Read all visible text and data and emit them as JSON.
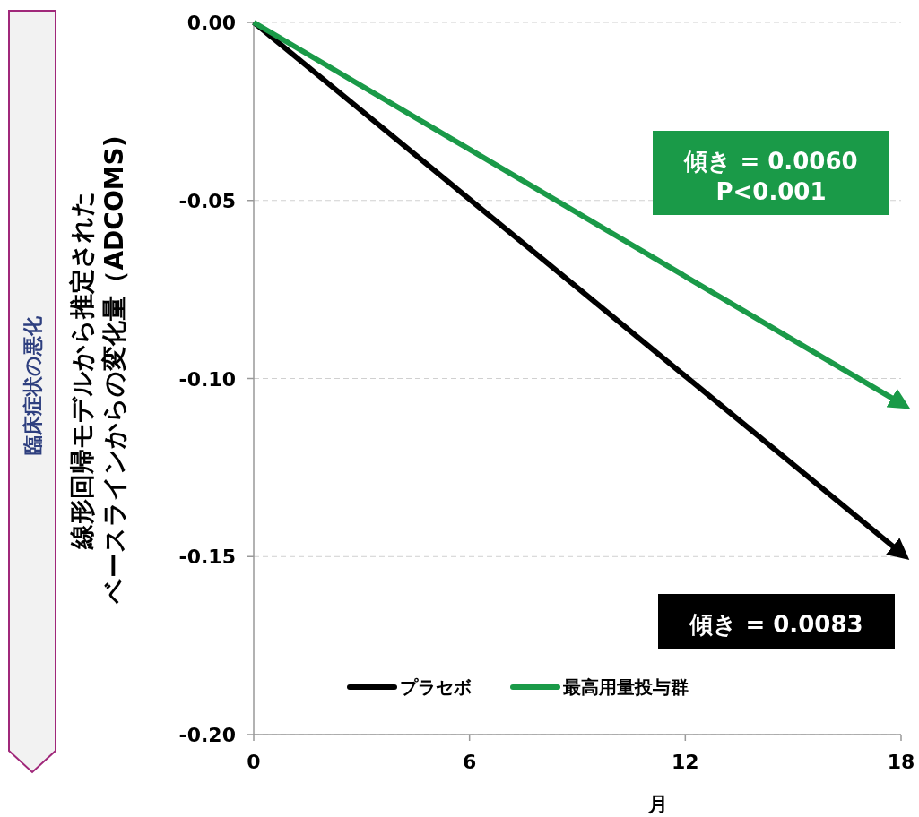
{
  "chart_data": {
    "type": "line",
    "xlabel": "月",
    "ylabel": "線形回帰モデルから推定されたベースラインからの変化量（ADCOMS)",
    "series": [
      {
        "name": "プラセボ",
        "color": "#000000",
        "values": [
          0,
          -0.149
        ]
      },
      {
        "name": "最高用量投与群",
        "color": "#1a9a48",
        "values": [
          0,
          -0.107
        ]
      }
    ],
    "x": [
      0,
      18
    ],
    "xlim": [
      0,
      18
    ],
    "xticks": [
      0,
      6,
      12,
      18
    ],
    "ylim": [
      -0.2,
      0
    ],
    "yticks": [
      {
        "value": -0.2,
        "label": "-0.20"
      },
      {
        "value": -0.15,
        "label": "-0.15"
      },
      {
        "value": -0.1,
        "label": "-0.10"
      },
      {
        "value": -0.05,
        "label": "-0.05"
      },
      {
        "value": 0,
        "label": "0.00"
      }
    ],
    "grid": "y",
    "legend": "bottom",
    "marker": "none",
    "line_style": "solid",
    "annotations": [
      "傾き = 0.0060\nP<0.001",
      "傾き = 0.0083",
      "臨床症状の悪化"
    ]
  }
}
